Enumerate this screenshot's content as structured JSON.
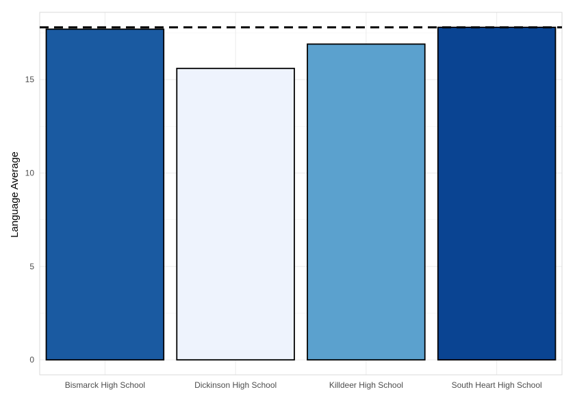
{
  "chart_data": {
    "type": "bar",
    "title": "",
    "xlabel": "",
    "ylabel": "Language Average",
    "categories": [
      "Bismarck High School",
      "Dickinson High School",
      "Killdeer High School",
      "South Heart High School"
    ],
    "values": [
      17.7,
      15.6,
      16.9,
      17.8
    ],
    "bar_colors": [
      "#1a5aa1",
      "#eef3fd",
      "#5ba1ce",
      "#0a4492"
    ],
    "bar_outline": "#000000",
    "reference_line": {
      "value": 17.8,
      "style": "dashed",
      "color": "#000000"
    },
    "ylim": [
      -0.8,
      18.6
    ],
    "yticks": [
      0,
      5,
      10,
      15
    ],
    "grid": true,
    "legend": "none"
  }
}
